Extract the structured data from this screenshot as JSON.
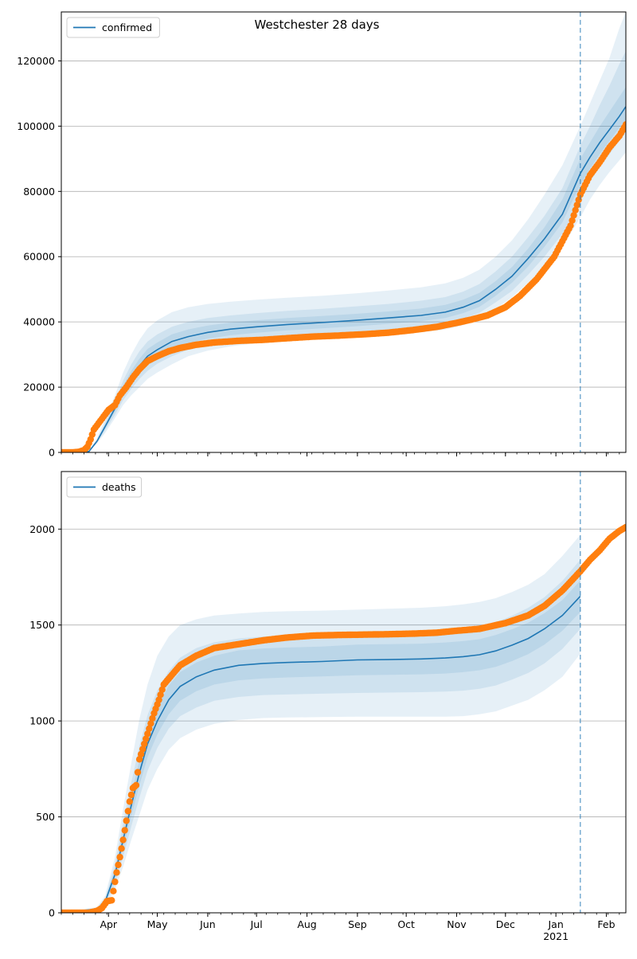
{
  "title": "Westchester 28 days",
  "colors": {
    "model": "#1f77b4",
    "observed": "#ff7f0e",
    "band": "#1f77b4",
    "grid": "#b0b0b0",
    "vline": "#1f77b4"
  },
  "x_ticks": [
    {
      "date": "2020-04-01",
      "label": "Apr"
    },
    {
      "date": "2020-05-01",
      "label": "May"
    },
    {
      "date": "2020-06-01",
      "label": "Jun"
    },
    {
      "date": "2020-07-01",
      "label": "Jul"
    },
    {
      "date": "2020-08-01",
      "label": "Aug"
    },
    {
      "date": "2020-09-01",
      "label": "Sep"
    },
    {
      "date": "2020-10-01",
      "label": "Oct"
    },
    {
      "date": "2020-11-01",
      "label": "Nov"
    },
    {
      "date": "2020-12-01",
      "label": "Dec"
    },
    {
      "date": "2021-01-01",
      "label": "Jan",
      "sublabel": "2021"
    },
    {
      "date": "2021-02-01",
      "label": "Feb"
    }
  ],
  "chart_data": [
    {
      "type": "line",
      "name": "confirmed",
      "legend_label": "confirmed",
      "legend_position": "top-left",
      "xlim": [
        "2020-03-03",
        "2021-02-13"
      ],
      "ylim": [
        0,
        135000
      ],
      "yticks": [
        0,
        20000,
        40000,
        60000,
        80000,
        100000,
        120000
      ],
      "ytick_labels": [
        "0",
        "20000",
        "40000",
        "60000",
        "80000",
        "100000",
        "120000"
      ],
      "grid": "horizontal",
      "forecast_start": "2021-01-16",
      "observed": {
        "marker": "circle",
        "x": [
          "2020-03-03",
          "2020-03-10",
          "2020-03-14",
          "2020-03-17",
          "2020-03-19",
          "2020-03-21",
          "2020-03-23",
          "2020-03-26",
          "2020-03-29",
          "2020-04-01",
          "2020-04-05",
          "2020-04-08",
          "2020-04-12",
          "2020-04-16",
          "2020-04-20",
          "2020-04-25",
          "2020-05-01",
          "2020-05-08",
          "2020-05-15",
          "2020-05-25",
          "2020-06-05",
          "2020-06-20",
          "2020-07-05",
          "2020-07-20",
          "2020-08-05",
          "2020-08-20",
          "2020-09-05",
          "2020-09-20",
          "2020-10-05",
          "2020-10-20",
          "2020-11-01",
          "2020-11-10",
          "2020-11-20",
          "2020-12-01",
          "2020-12-10",
          "2020-12-20",
          "2020-12-31",
          "2021-01-10",
          "2021-01-16",
          "2021-01-22",
          "2021-01-28",
          "2021-02-03",
          "2021-02-09",
          "2021-02-13"
        ],
        "y": [
          0,
          0,
          200,
          700,
          1700,
          4000,
          7000,
          9000,
          11000,
          13000,
          14500,
          17500,
          20000,
          23000,
          25500,
          28000,
          29500,
          31000,
          32000,
          33000,
          33700,
          34200,
          34500,
          35000,
          35500,
          35800,
          36200,
          36700,
          37500,
          38500,
          39700,
          40700,
          42000,
          44500,
          48000,
          53000,
          60000,
          69500,
          79000,
          85000,
          89000,
          93500,
          97000,
          100500
        ]
      },
      "model": {
        "x": [
          "2020-03-03",
          "2020-03-20",
          "2020-03-25",
          "2020-03-30",
          "2020-04-05",
          "2020-04-10",
          "2020-04-15",
          "2020-04-20",
          "2020-04-25",
          "2020-05-01",
          "2020-05-10",
          "2020-05-20",
          "2020-06-01",
          "2020-06-15",
          "2020-07-01",
          "2020-07-20",
          "2020-08-10",
          "2020-09-01",
          "2020-09-20",
          "2020-10-10",
          "2020-10-25",
          "2020-11-05",
          "2020-11-15",
          "2020-11-25",
          "2020-12-05",
          "2020-12-15",
          "2020-12-25",
          "2021-01-05",
          "2021-01-16",
          "2021-01-22",
          "2021-01-28",
          "2021-02-03",
          "2021-02-09",
          "2021-02-13"
        ],
        "y": [
          0,
          300,
          3500,
          8000,
          13500,
          19000,
          23000,
          26500,
          29500,
          31500,
          34000,
          35500,
          36800,
          37800,
          38500,
          39200,
          39800,
          40500,
          41200,
          42000,
          43000,
          44500,
          46500,
          50000,
          54000,
          59500,
          65500,
          73000,
          85500,
          90500,
          95000,
          99000,
          103000,
          106000
        ],
        "bands": [
          {
            "lower": [
              0,
              200,
              2800,
              6000,
              10500,
              14500,
              17500,
              20000,
              22500,
              24500,
              27000,
              29500,
              31200,
              32500,
              33500,
              34300,
              34900,
              35500,
              36100,
              36800,
              37700,
              39000,
              40800,
              44000,
              47500,
              52000,
              57000,
              63000,
              72000,
              77500,
              82000,
              86000,
              89500,
              92000
            ],
            "upper": [
              0,
              400,
              4500,
              10500,
              17500,
              24500,
              30000,
              34500,
              38000,
              40500,
              43000,
              44500,
              45500,
              46200,
              46800,
              47400,
              48000,
              48800,
              49600,
              50600,
              51800,
              53500,
              56000,
              60000,
              65000,
              71500,
              79000,
              88000,
              100000,
              107000,
              114000,
              121000,
              130000,
              135000
            ]
          },
          {
            "lower": [
              0,
              250,
              3000,
              6800,
              11500,
              16000,
              19500,
              22500,
              25000,
              27200,
              29500,
              31500,
              33000,
              34200,
              35000,
              35800,
              36400,
              37000,
              37700,
              38500,
              39500,
              41000,
              42800,
              46000,
              49500,
              54500,
              60000,
              67000,
              77000,
              83000,
              87500,
              91500,
              95500,
              98000
            ],
            "upper": [
              0,
              350,
              4000,
              9300,
              15500,
              22000,
              27000,
              31000,
              34000,
              36200,
              38500,
              40000,
              41200,
              42000,
              42700,
              43400,
              44000,
              44800,
              45500,
              46500,
              47600,
              49300,
              51600,
              55500,
              60000,
              66000,
              72500,
              81000,
              94000,
              100000,
              106500,
              112500,
              119000,
              123000
            ]
          },
          {
            "lower": [
              0,
              280,
              3200,
              7400,
              12500,
              17500,
              21300,
              24500,
              27300,
              29300,
              31800,
              33500,
              34900,
              35900,
              36700,
              37400,
              38000,
              38700,
              39400,
              40200,
              41200,
              42700,
              44600,
              48000,
              52000,
              57000,
              63000,
              70500,
              82000,
              87000,
              91500,
              95500,
              99500,
              102000
            ],
            "upper": [
              0,
              320,
              3800,
              8700,
              14500,
              20500,
              25000,
              28700,
              31700,
              33700,
              36200,
              37700,
              38900,
              39800,
              40500,
              41200,
              41800,
              42500,
              43200,
              44100,
              45200,
              46800,
              48900,
              52500,
              56800,
              62500,
              69000,
              77500,
              90000,
              95000,
              100000,
              104500,
              109000,
              112000
            ]
          }
        ]
      }
    },
    {
      "type": "line",
      "name": "deaths",
      "legend_label": "deaths",
      "legend_position": "top-left",
      "xlim": [
        "2020-03-03",
        "2021-02-13"
      ],
      "ylim": [
        0,
        2300
      ],
      "yticks": [
        0,
        500,
        1000,
        1500,
        2000
      ],
      "ytick_labels": [
        "0",
        "500",
        "1000",
        "1500",
        "2000"
      ],
      "grid": "horizontal",
      "forecast_start": "2021-01-16",
      "observed": {
        "marker": "circle",
        "x": [
          "2020-03-03",
          "2020-03-20",
          "2020-03-25",
          "2020-03-28",
          "2020-03-31",
          "2020-04-03",
          "2020-04-06",
          "2020-04-08",
          "2020-04-10",
          "2020-04-12",
          "2020-04-14",
          "2020-04-16",
          "2020-04-18",
          "2020-04-20",
          "2020-04-23",
          "2020-04-26",
          "2020-04-29",
          "2020-05-02",
          "2020-05-05",
          "2020-05-10",
          "2020-05-15",
          "2020-05-25",
          "2020-06-05",
          "2020-06-20",
          "2020-07-05",
          "2020-07-20",
          "2020-08-05",
          "2020-08-20",
          "2020-09-05",
          "2020-09-20",
          "2020-10-05",
          "2020-10-20",
          "2020-11-01",
          "2020-11-15",
          "2020-12-01",
          "2020-12-15",
          "2020-12-25",
          "2021-01-05",
          "2021-01-16",
          "2021-01-22",
          "2021-01-28",
          "2021-02-03",
          "2021-02-09",
          "2021-02-13"
        ],
        "y": [
          0,
          0,
          10,
          25,
          60,
          65,
          210,
          290,
          380,
          480,
          580,
          650,
          665,
          800,
          880,
          960,
          1040,
          1110,
          1190,
          1240,
          1290,
          1340,
          1380,
          1400,
          1420,
          1435,
          1445,
          1448,
          1450,
          1452,
          1455,
          1460,
          1470,
          1480,
          1510,
          1550,
          1600,
          1680,
          1780,
          1840,
          1890,
          1950,
          1990,
          2010
        ]
      },
      "model": {
        "x": [
          "2020-03-03",
          "2020-03-25",
          "2020-03-30",
          "2020-04-05",
          "2020-04-10",
          "2020-04-15",
          "2020-04-20",
          "2020-04-25",
          "2020-05-01",
          "2020-05-08",
          "2020-05-15",
          "2020-05-25",
          "2020-06-05",
          "2020-06-20",
          "2020-07-05",
          "2020-07-20",
          "2020-08-10",
          "2020-09-01",
          "2020-09-20",
          "2020-10-10",
          "2020-10-25",
          "2020-11-05",
          "2020-11-15",
          "2020-11-25",
          "2020-12-05",
          "2020-12-15",
          "2020-12-25",
          "2021-01-05",
          "2021-01-16"
        ],
        "y": [
          0,
          20,
          60,
          200,
          380,
          560,
          730,
          880,
          1000,
          1110,
          1180,
          1230,
          1265,
          1290,
          1300,
          1305,
          1310,
          1318,
          1320,
          1323,
          1328,
          1335,
          1345,
          1365,
          1395,
          1430,
          1480,
          1550,
          1650
        ],
        "bands": [
          {
            "lower": [
              0,
              10,
              35,
              120,
              240,
              380,
              510,
              640,
              750,
              850,
              910,
              955,
              985,
              1005,
              1015,
              1018,
              1020,
              1022,
              1022,
              1022,
              1022,
              1025,
              1035,
              1050,
              1080,
              1110,
              1160,
              1230,
              1350
            ],
            "upper": [
              0,
              30,
              90,
              290,
              540,
              780,
              1010,
              1190,
              1340,
              1440,
              1500,
              1530,
              1550,
              1560,
              1568,
              1572,
              1575,
              1580,
              1585,
              1590,
              1598,
              1608,
              1620,
              1640,
              1672,
              1710,
              1765,
              1860,
              1970
            ]
          },
          {
            "lower": [
              0,
              14,
              45,
              150,
              290,
              450,
              600,
              740,
              860,
              960,
              1025,
              1070,
              1105,
              1125,
              1135,
              1138,
              1142,
              1146,
              1148,
              1150,
              1153,
              1158,
              1168,
              1185,
              1215,
              1250,
              1300,
              1375,
              1480
            ],
            "upper": [
              0,
              26,
              75,
              250,
              470,
              680,
              870,
              1030,
              1160,
              1260,
              1330,
              1380,
              1410,
              1430,
              1440,
              1445,
              1450,
              1455,
              1458,
              1462,
              1468,
              1478,
              1492,
              1515,
              1548,
              1590,
              1645,
              1730,
              1840
            ]
          },
          {
            "lower": [
              0,
              17,
              52,
              175,
              335,
              505,
              665,
              810,
              930,
              1035,
              1105,
              1155,
              1190,
              1212,
              1222,
              1227,
              1232,
              1238,
              1240,
              1243,
              1247,
              1254,
              1264,
              1282,
              1312,
              1348,
              1398,
              1470,
              1568
            ],
            "upper": [
              0,
              23,
              68,
              225,
              425,
              615,
              795,
              950,
              1070,
              1185,
              1255,
              1305,
              1340,
              1368,
              1378,
              1383,
              1388,
              1398,
              1400,
              1403,
              1409,
              1416,
              1426,
              1448,
              1478,
              1512,
              1562,
              1630,
              1732
            ]
          }
        ]
      }
    }
  ]
}
